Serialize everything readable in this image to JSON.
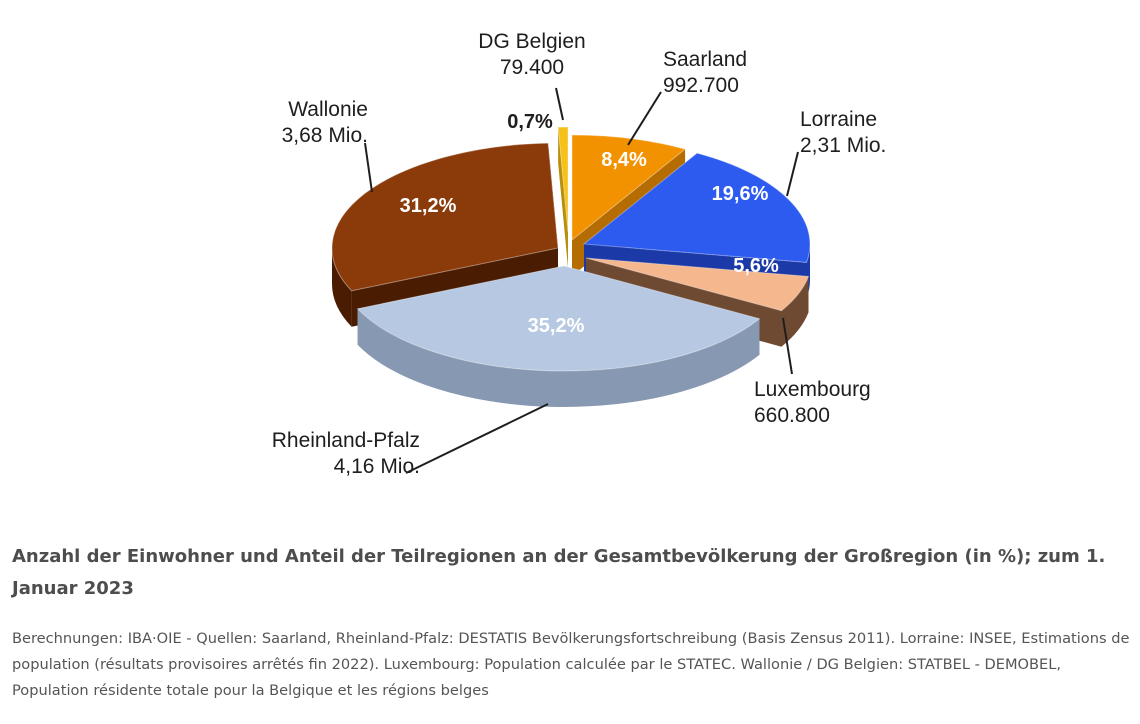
{
  "chart_data": {
    "type": "pie",
    "variant": "3d-exploded",
    "slices": [
      {
        "name": "Saarland",
        "population_label": "992.700",
        "value": 8.4,
        "pct_label": "8,4%",
        "color": "#F39200",
        "side": "#B56C00"
      },
      {
        "name": "Lorraine",
        "population_label": "2,31 Mio.",
        "value": 19.6,
        "pct_label": "19,6%",
        "color": "#2D5BF0",
        "side": "#1B3AA8"
      },
      {
        "name": "Luxembourg",
        "population_label": "660.800",
        "value": 5.6,
        "pct_label": "5,6%",
        "color": "#F5B78E",
        "side": "#6E4A33"
      },
      {
        "name": "Rheinland-Pfalz",
        "population_label": "4,16 Mio.",
        "value": 35.2,
        "pct_label": "35,2%",
        "color": "#B7C9E2",
        "side": "#8799B2"
      },
      {
        "name": "Wallonie",
        "population_label": "3,68 Mio.",
        "value": 31.2,
        "pct_label": "31,2%",
        "color": "#8B3A0A",
        "side": "#4A1C02"
      },
      {
        "name": "DG Belgien",
        "population_label": "79.400",
        "value": 0.7,
        "pct_label": "0,7%",
        "color": "#F6C21A",
        "side": "#B88E0C"
      }
    ],
    "title": "Anzahl der Einwohner und Anteil der Teilregionen an der Gesamtbevölkerung der Großregion (in %); zum 1. Januar 2023",
    "source": "Berechnungen: IBA·OIE - Quellen: Saarland, Rheinland-Pfalz: DESTATIS Bevölkerungsfortschreibung (Basis Zensus 2011). Lorraine: INSEE, Estimations de population (résultats provisoires arrêtés fin 2022). Luxembourg: Population calculée par le STATEC. Wallonie / DG Belgien: STATBEL - DEMOBEL, Population résidente totale pour la Belgique et les régions belges",
    "legend": "none"
  }
}
